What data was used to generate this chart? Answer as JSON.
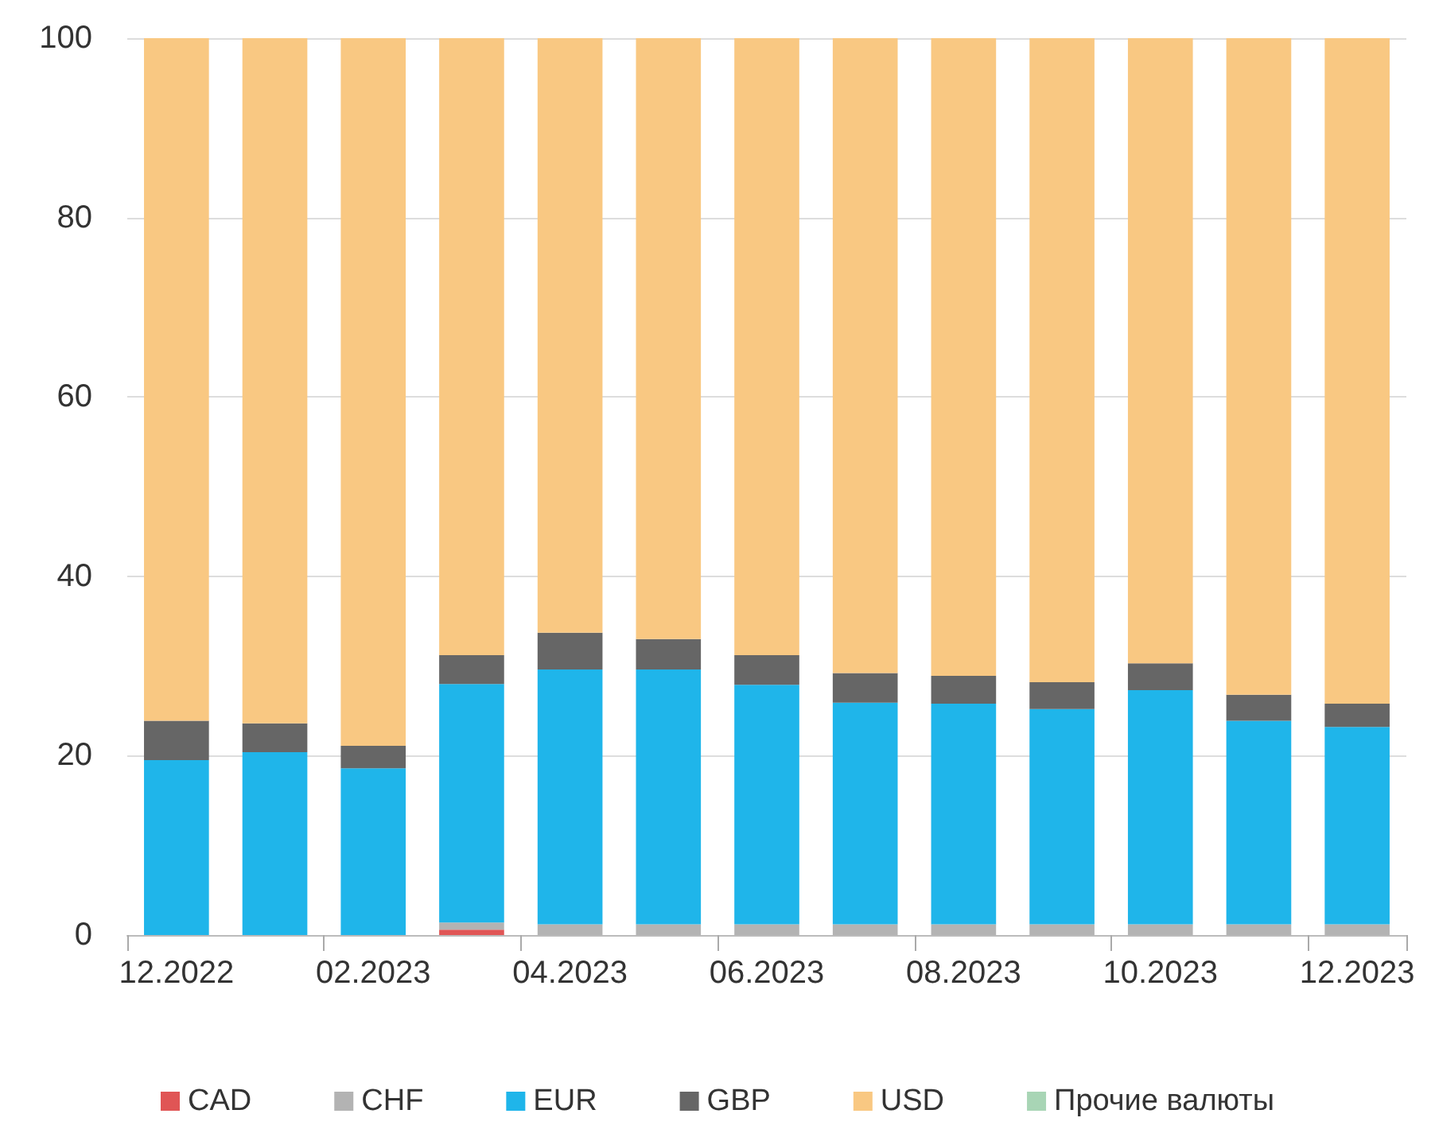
{
  "chart_data": {
    "type": "bar",
    "stacked": true,
    "categories": [
      "12.2022",
      null,
      "02.2023",
      null,
      "04.2023",
      null,
      "06.2023",
      null,
      "08.2023",
      null,
      "10.2023",
      null,
      "12.2023"
    ],
    "series": [
      {
        "name": "CAD",
        "color": "#e05555",
        "values": [
          0,
          0,
          0,
          0.6,
          0,
          0,
          0,
          0,
          0,
          0,
          0,
          0,
          0
        ]
      },
      {
        "name": "CHF",
        "color": "#b3b3b3",
        "values": [
          0,
          0,
          0,
          0.8,
          1.2,
          1.2,
          1.2,
          1.2,
          1.2,
          1.2,
          1.2,
          1.2,
          1.2
        ]
      },
      {
        "name": "EUR",
        "color": "#1fb5ea",
        "values": [
          19.5,
          20.4,
          18.6,
          26.6,
          28.4,
          28.4,
          26.7,
          24.7,
          24.6,
          24.0,
          26.1,
          22.7,
          22.0
        ]
      },
      {
        "name": "GBP",
        "color": "#666666",
        "values": [
          4.4,
          3.2,
          2.5,
          3.2,
          4.1,
          3.4,
          3.3,
          3.3,
          3.1,
          3.0,
          3.0,
          2.9,
          2.6
        ]
      },
      {
        "name": "USD",
        "color": "#f9c882",
        "values": [
          76.1,
          76.4,
          78.9,
          68.8,
          66.3,
          67.0,
          68.8,
          70.8,
          71.1,
          71.8,
          69.7,
          73.2,
          74.2
        ]
      },
      {
        "name": "Прочие валюты",
        "color": "#a8d5b5",
        "values": [
          0,
          0,
          0,
          0,
          0,
          0,
          0,
          0,
          0,
          0,
          0,
          0,
          0
        ]
      }
    ],
    "ylim": [
      0,
      100
    ],
    "yticks": [
      0,
      20,
      40,
      60,
      80,
      100
    ],
    "grid": "y",
    "legend": "bottom"
  }
}
